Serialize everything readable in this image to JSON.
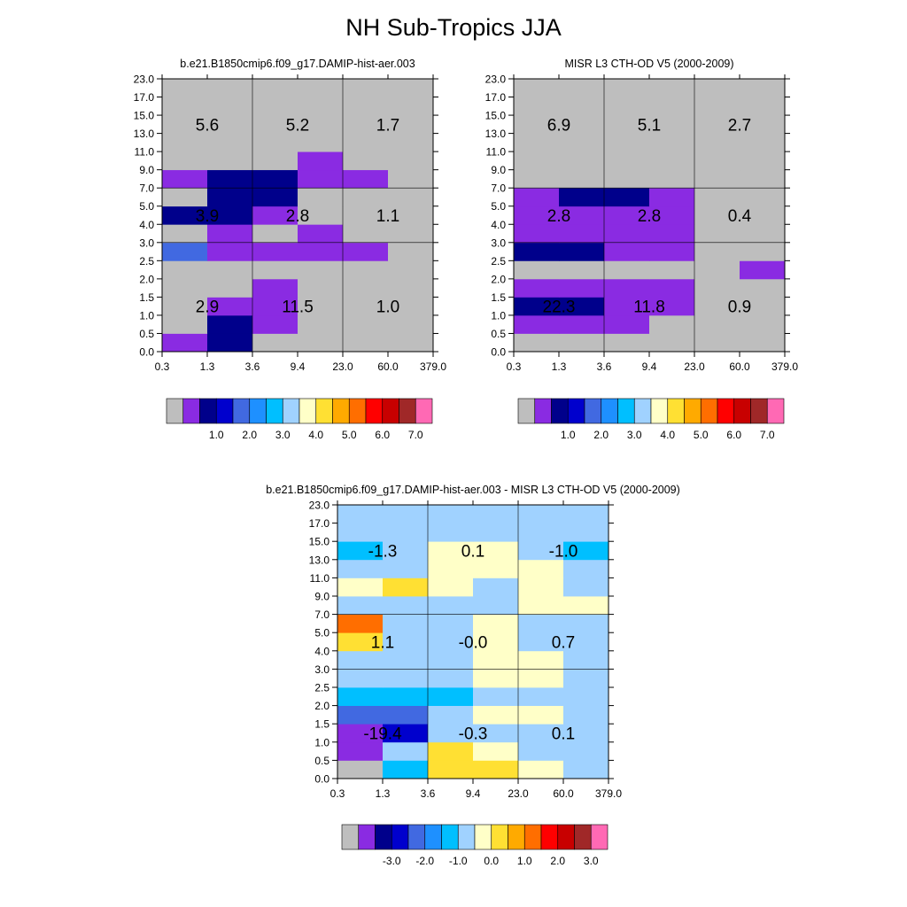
{
  "page": {
    "title": "NH Sub-Tropics JJA"
  },
  "palette": [
    "#bebebe",
    "#8a2be2",
    "#00008b",
    "#0000cd",
    "#4169e1",
    "#1e90ff",
    "#00bfff",
    "#a0d2ff",
    "#ffffc8",
    "#ffe033",
    "#ffaa00",
    "#ff6e00",
    "#ff0000",
    "#c80000",
    "#a02828",
    "#ff69b4"
  ],
  "chart_data": [
    {
      "type": "heatmap",
      "title": "b.e21.B1850cmip6.f09_g17.DAMIP-hist-aer.003",
      "x_ticks": [
        "0.3",
        "1.3",
        "3.6",
        "9.4",
        "23.0",
        "60.0",
        "379.0"
      ],
      "y_ticks": [
        "0.0",
        "0.5",
        "1.0",
        "1.5",
        "2.0",
        "2.5",
        "3.0",
        "4.0",
        "5.0",
        "7.0",
        "9.0",
        "11.0",
        "13.0",
        "15.0",
        "17.0",
        "23.0"
      ],
      "grid_color_index": [
        [
          1,
          2,
          0,
          0,
          0,
          0
        ],
        [
          0,
          2,
          1,
          0,
          0,
          0
        ],
        [
          0,
          1,
          1,
          0,
          0,
          0
        ],
        [
          0,
          0,
          1,
          0,
          0,
          0
        ],
        [
          0,
          0,
          0,
          0,
          0,
          0
        ],
        [
          4,
          1,
          1,
          1,
          1,
          0
        ],
        [
          0,
          1,
          0,
          1,
          0,
          0
        ],
        [
          2,
          2,
          1,
          0,
          0,
          0
        ],
        [
          0,
          2,
          2,
          0,
          0,
          0
        ],
        [
          1,
          2,
          2,
          1,
          1,
          0
        ],
        [
          0,
          0,
          0,
          1,
          0,
          0
        ],
        [
          0,
          0,
          0,
          0,
          0,
          0
        ],
        [
          0,
          0,
          0,
          0,
          0,
          0
        ],
        [
          0,
          0,
          0,
          0,
          0,
          0
        ],
        [
          0,
          0,
          0,
          0,
          0,
          0
        ]
      ],
      "overlay": [
        {
          "row": "upper",
          "values": [
            "5.6",
            "5.2",
            "1.7"
          ]
        },
        {
          "row": "middle",
          "values": [
            "3.9",
            "2.8",
            "1.1"
          ]
        },
        {
          "row": "lower",
          "values": [
            "2.9",
            "11.5",
            "1.0"
          ]
        }
      ],
      "colorbar": {
        "labels": [
          "1.0",
          "2.0",
          "3.0",
          "4.0",
          "5.0",
          "6.0",
          "7.0"
        ]
      }
    },
    {
      "type": "heatmap",
      "title": "MISR L3 CTH-OD V5 (2000-2009)",
      "x_ticks": [
        "0.3",
        "1.3",
        "3.6",
        "9.4",
        "23.0",
        "60.0",
        "379.0"
      ],
      "y_ticks": [
        "0.0",
        "0.5",
        "1.0",
        "1.5",
        "2.0",
        "2.5",
        "3.0",
        "4.0",
        "5.0",
        "7.0",
        "9.0",
        "11.0",
        "13.0",
        "15.0",
        "17.0",
        "23.0"
      ],
      "grid_color_index": [
        [
          0,
          0,
          0,
          0,
          0,
          0
        ],
        [
          1,
          1,
          1,
          0,
          0,
          0
        ],
        [
          2,
          2,
          1,
          1,
          0,
          0
        ],
        [
          1,
          1,
          1,
          1,
          0,
          0
        ],
        [
          0,
          0,
          0,
          0,
          0,
          1
        ],
        [
          2,
          2,
          1,
          1,
          0,
          0
        ],
        [
          1,
          1,
          1,
          1,
          0,
          0
        ],
        [
          1,
          1,
          1,
          1,
          0,
          0
        ],
        [
          1,
          2,
          2,
          1,
          0,
          0
        ],
        [
          0,
          0,
          0,
          0,
          0,
          0
        ],
        [
          0,
          0,
          0,
          0,
          0,
          0
        ],
        [
          0,
          0,
          0,
          0,
          0,
          0
        ],
        [
          0,
          0,
          0,
          0,
          0,
          0
        ],
        [
          0,
          0,
          0,
          0,
          0,
          0
        ],
        [
          0,
          0,
          0,
          0,
          0,
          0
        ]
      ],
      "overlay": [
        {
          "row": "upper",
          "values": [
            "6.9",
            "5.1",
            "2.7"
          ]
        },
        {
          "row": "middle",
          "values": [
            "2.8",
            "2.8",
            "0.4"
          ]
        },
        {
          "row": "lower",
          "values": [
            "22.3",
            "11.8",
            "0.9"
          ]
        }
      ],
      "colorbar": {
        "labels": [
          "1.0",
          "2.0",
          "3.0",
          "4.0",
          "5.0",
          "6.0",
          "7.0"
        ]
      }
    },
    {
      "type": "heatmap",
      "title": "b.e21.B1850cmip6.f09_g17.DAMIP-hist-aer.003 - MISR L3 CTH-OD V5 (2000-2009)",
      "x_ticks": [
        "0.3",
        "1.3",
        "3.6",
        "9.4",
        "23.0",
        "60.0",
        "379.0"
      ],
      "y_ticks": [
        "0.0",
        "0.5",
        "1.0",
        "1.5",
        "2.0",
        "2.5",
        "3.0",
        "4.0",
        "5.0",
        "7.0",
        "9.0",
        "11.0",
        "13.0",
        "15.0",
        "17.0",
        "23.0"
      ],
      "grid_color_index": [
        [
          0,
          6,
          9,
          9,
          8,
          7
        ],
        [
          1,
          7,
          9,
          8,
          7,
          7
        ],
        [
          1,
          3,
          7,
          7,
          7,
          7
        ],
        [
          4,
          4,
          7,
          8,
          8,
          7
        ],
        [
          6,
          6,
          6,
          7,
          7,
          7
        ],
        [
          7,
          7,
          7,
          8,
          8,
          7
        ],
        [
          7,
          7,
          7,
          8,
          8,
          7
        ],
        [
          9,
          7,
          7,
          8,
          7,
          7
        ],
        [
          11,
          7,
          7,
          8,
          7,
          7
        ],
        [
          7,
          7,
          7,
          7,
          8,
          8
        ],
        [
          8,
          9,
          8,
          7,
          8,
          7
        ],
        [
          7,
          7,
          8,
          8,
          8,
          7
        ],
        [
          6,
          7,
          8,
          8,
          7,
          6
        ],
        [
          7,
          7,
          7,
          7,
          7,
          7
        ],
        [
          7,
          7,
          7,
          7,
          7,
          7
        ]
      ],
      "overlay": [
        {
          "row": "upper",
          "values": [
            "-1.3",
            "0.1",
            "-1.0"
          ]
        },
        {
          "row": "middle",
          "values": [
            "1.1",
            "-0.0",
            "0.7"
          ]
        },
        {
          "row": "lower",
          "values": [
            "-19.4",
            "-0.3",
            "0.1"
          ]
        }
      ],
      "colorbar": {
        "labels": [
          "-3.0",
          "-2.0",
          "-1.0",
          "0.0",
          "1.0",
          "2.0",
          "3.0"
        ]
      }
    }
  ]
}
